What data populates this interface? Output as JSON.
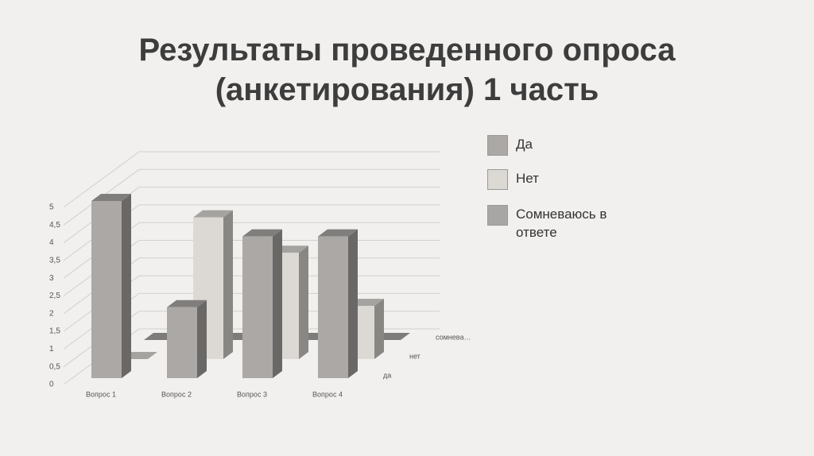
{
  "chart_data": {
    "type": "bar3d",
    "title": "Результаты проведенного опроса (анкетирования) 1 часть",
    "categories": [
      "Вопрос 1",
      "Вопрос 2",
      "Вопрос 3",
      "Вопрос 4"
    ],
    "depth_labels": [
      "да",
      "нет",
      "сомнева…"
    ],
    "series": [
      {
        "name": "Да",
        "color": "#aba8a5",
        "values": [
          5,
          2,
          4,
          4
        ]
      },
      {
        "name": "Нет",
        "color": "#dcd9d4",
        "values": [
          0,
          4,
          3,
          1.5
        ]
      },
      {
        "name": "Сомневаюсь в ответе",
        "color": "#a8a6a4",
        "values": [
          0,
          0,
          0,
          0
        ]
      }
    ],
    "ylim": [
      0,
      5
    ],
    "yticks": [
      0,
      {
        "value": 0.5,
        "label": "0,5"
      },
      1,
      {
        "value": 1.5,
        "label": "1,5"
      },
      2,
      {
        "value": 2.5,
        "label": "2,5"
      },
      3,
      {
        "value": 3.5,
        "label": "3,5"
      },
      4,
      {
        "value": 4.5,
        "label": "4,5"
      },
      5
    ],
    "grid": true,
    "legend": "right"
  }
}
